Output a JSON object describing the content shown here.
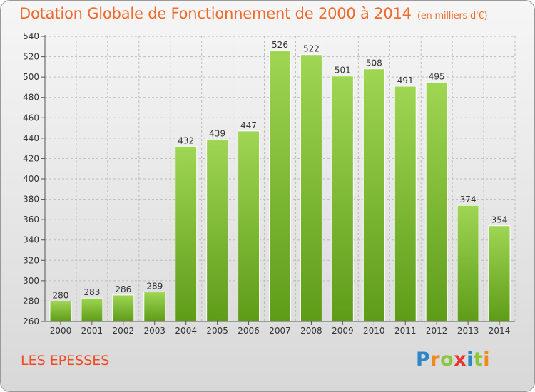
{
  "title": "Dotation Globale de Fonctionnement de 2000 à 2014",
  "subtitle": "(en milliers d'€)",
  "location": "LES EPESSES",
  "logo": {
    "text": "Proxiti",
    "letters": [
      {
        "ch": "P",
        "color": "#2e86c9"
      },
      {
        "ch": "r",
        "color": "#f08a1c"
      },
      {
        "ch": "o",
        "color": "#8cc63f"
      },
      {
        "ch": "x",
        "color": "#e8322f"
      },
      {
        "ch": "i",
        "color": "#2e86c9"
      },
      {
        "ch": "t",
        "color": "#8cc63f"
      },
      {
        "ch": "i",
        "color": "#f08a1c"
      }
    ]
  },
  "colors": {
    "title": "#ef6a2d",
    "bar_top": "#9fd653",
    "bar_bottom": "#5e9c18",
    "grid": "#bcbcbc"
  },
  "chart_data": {
    "type": "bar",
    "categories": [
      "2000",
      "2001",
      "2002",
      "2003",
      "2004",
      "2005",
      "2006",
      "2007",
      "2008",
      "2009",
      "2010",
      "2011",
      "2012",
      "2013",
      "2014"
    ],
    "values": [
      280,
      283,
      286,
      289,
      432,
      439,
      447,
      526,
      522,
      501,
      508,
      491,
      495,
      374,
      354
    ],
    "data_labels": [
      "280",
      "283",
      "286",
      "289",
      "432",
      "439",
      "447",
      "526",
      "522",
      "501",
      "508",
      "491",
      "495",
      "374",
      "354"
    ],
    "yticks": [
      "260",
      "280",
      "300",
      "320",
      "340",
      "360",
      "380",
      "400",
      "420",
      "440",
      "460",
      "480",
      "500",
      "520",
      "540"
    ],
    "ylim": [
      260,
      540
    ],
    "grid": true,
    "xlabel": "",
    "ylabel": ""
  }
}
